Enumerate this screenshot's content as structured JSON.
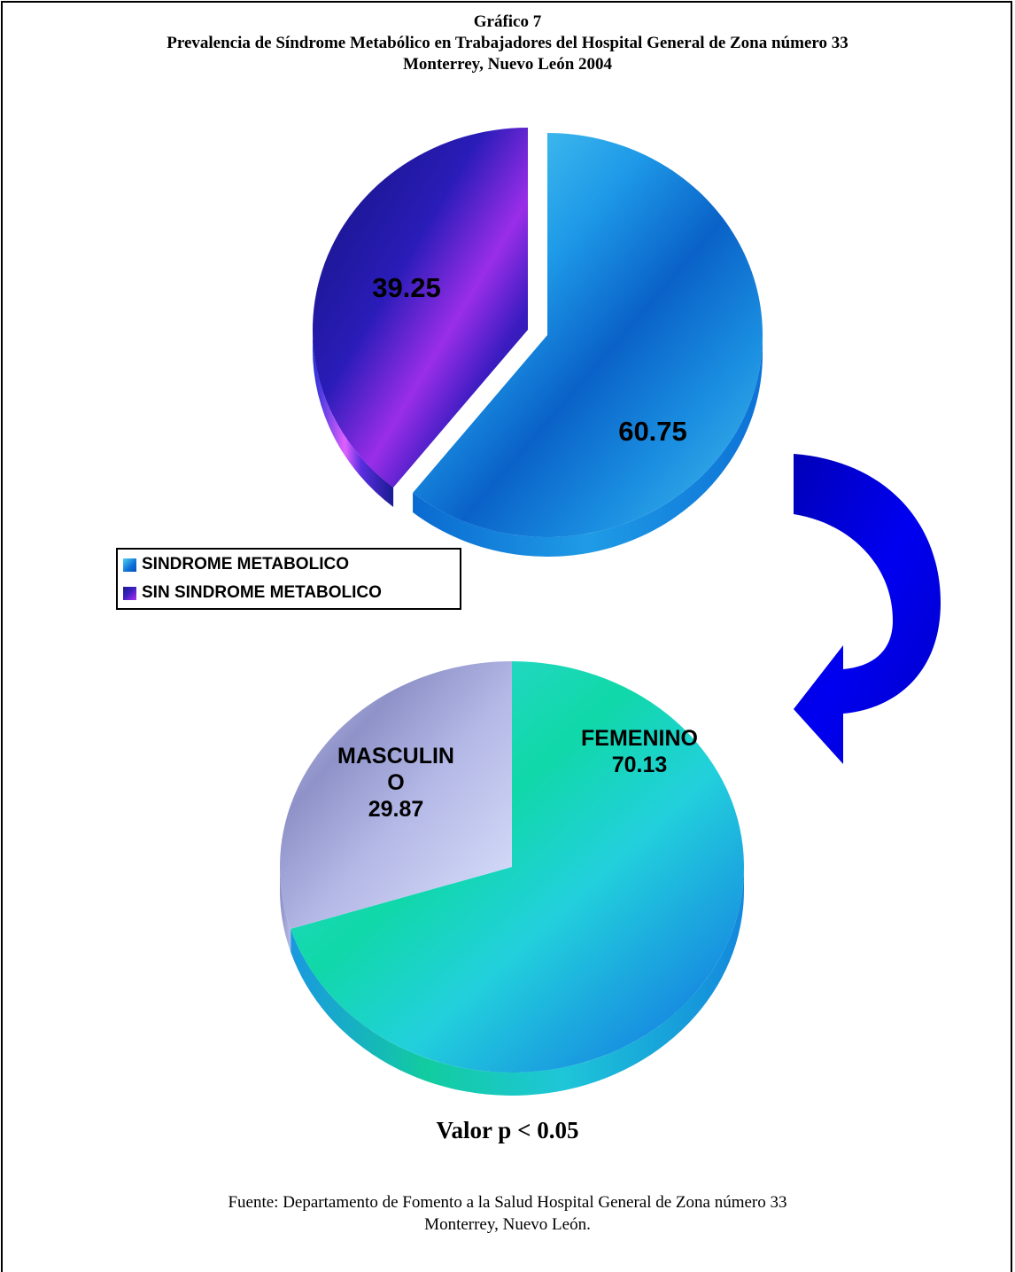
{
  "title": {
    "line1": "Gráfico 7",
    "line2": "Prevalencia de Síndrome Metabólico en Trabajadores del Hospital General de Zona número 33",
    "line3": "Monterrey, Nuevo León 2004"
  },
  "chart_data": [
    {
      "type": "pie",
      "title": "",
      "slices": [
        {
          "label": "SINDROME METABOLICO",
          "value": 60.75,
          "display": "60.75",
          "color": "#0c6fd8"
        },
        {
          "label": "SIN SINDROME METABOLICO",
          "value": 39.25,
          "display": "39.25",
          "color": "#3a20c0"
        }
      ],
      "exploded": "SIN SINDROME METABOLICO",
      "legend_position": "bottom-left"
    },
    {
      "type": "pie",
      "title": "",
      "slices": [
        {
          "label": "FEMENINO",
          "value": 70.13,
          "display_lines": [
            "FEMENINO",
            "70.13"
          ],
          "color": "#22d4d8"
        },
        {
          "label": "MASCULINO",
          "value": 29.87,
          "display_lines": [
            "MASCULIN",
            "O",
            "29.87"
          ],
          "color": "#a8acdc"
        }
      ]
    }
  ],
  "legend": {
    "items": [
      "SINDROME METABOLICO",
      "SIN SINDROME METABOLICO"
    ]
  },
  "arrow": {
    "color": "#0000cc",
    "icon": "curved-arrow-icon"
  },
  "pvalue": "Valor p  < 0.05",
  "source": {
    "line1": "Fuente: Departamento de Fomento a la Salud Hospital General de Zona número 33",
    "line2": "Monterrey, Nuevo León."
  }
}
